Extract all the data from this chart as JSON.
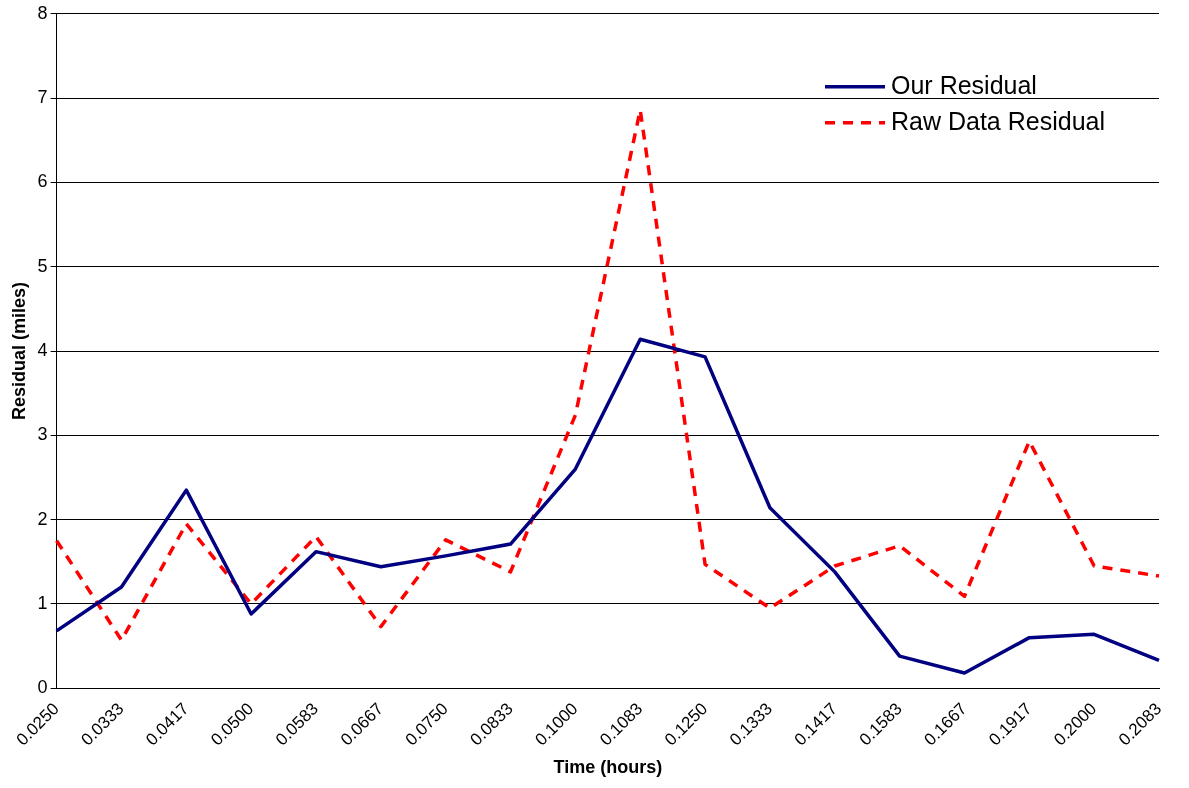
{
  "chart_data": {
    "type": "line",
    "xlabel": "Time (hours)",
    "ylabel": "Residual (miles)",
    "categories": [
      "0.0250",
      "0.0333",
      "0.0417",
      "0.0500",
      "0.0583",
      "0.0667",
      "0.0750",
      "0.0833",
      "0.1000",
      "0.1083",
      "0.1250",
      "0.1333",
      "0.1417",
      "0.1583",
      "0.1667",
      "0.1917",
      "0.2000",
      "0.2083"
    ],
    "series": [
      {
        "name": "Our Residual",
        "color": "#000080",
        "line_style": "solid",
        "values": [
          0.68,
          1.2,
          2.35,
          0.88,
          1.62,
          1.44,
          1.57,
          1.71,
          2.6,
          4.14,
          3.93,
          2.14,
          1.38,
          0.38,
          0.18,
          0.6,
          0.64,
          0.33
        ]
      },
      {
        "name": "Raw Data Residual",
        "color": "#ff0000",
        "line_style": "dashed",
        "values": [
          1.75,
          0.57,
          1.95,
          1.0,
          1.8,
          0.73,
          1.76,
          1.38,
          3.24,
          6.86,
          1.47,
          0.95,
          1.45,
          1.69,
          1.09,
          2.93,
          1.45,
          1.33
        ]
      }
    ],
    "ylim": [
      0,
      8
    ],
    "yticks": [
      0,
      1,
      2,
      3,
      4,
      5,
      6,
      7,
      8
    ],
    "grid": "y",
    "legend": "top right",
    "marker": "none"
  }
}
